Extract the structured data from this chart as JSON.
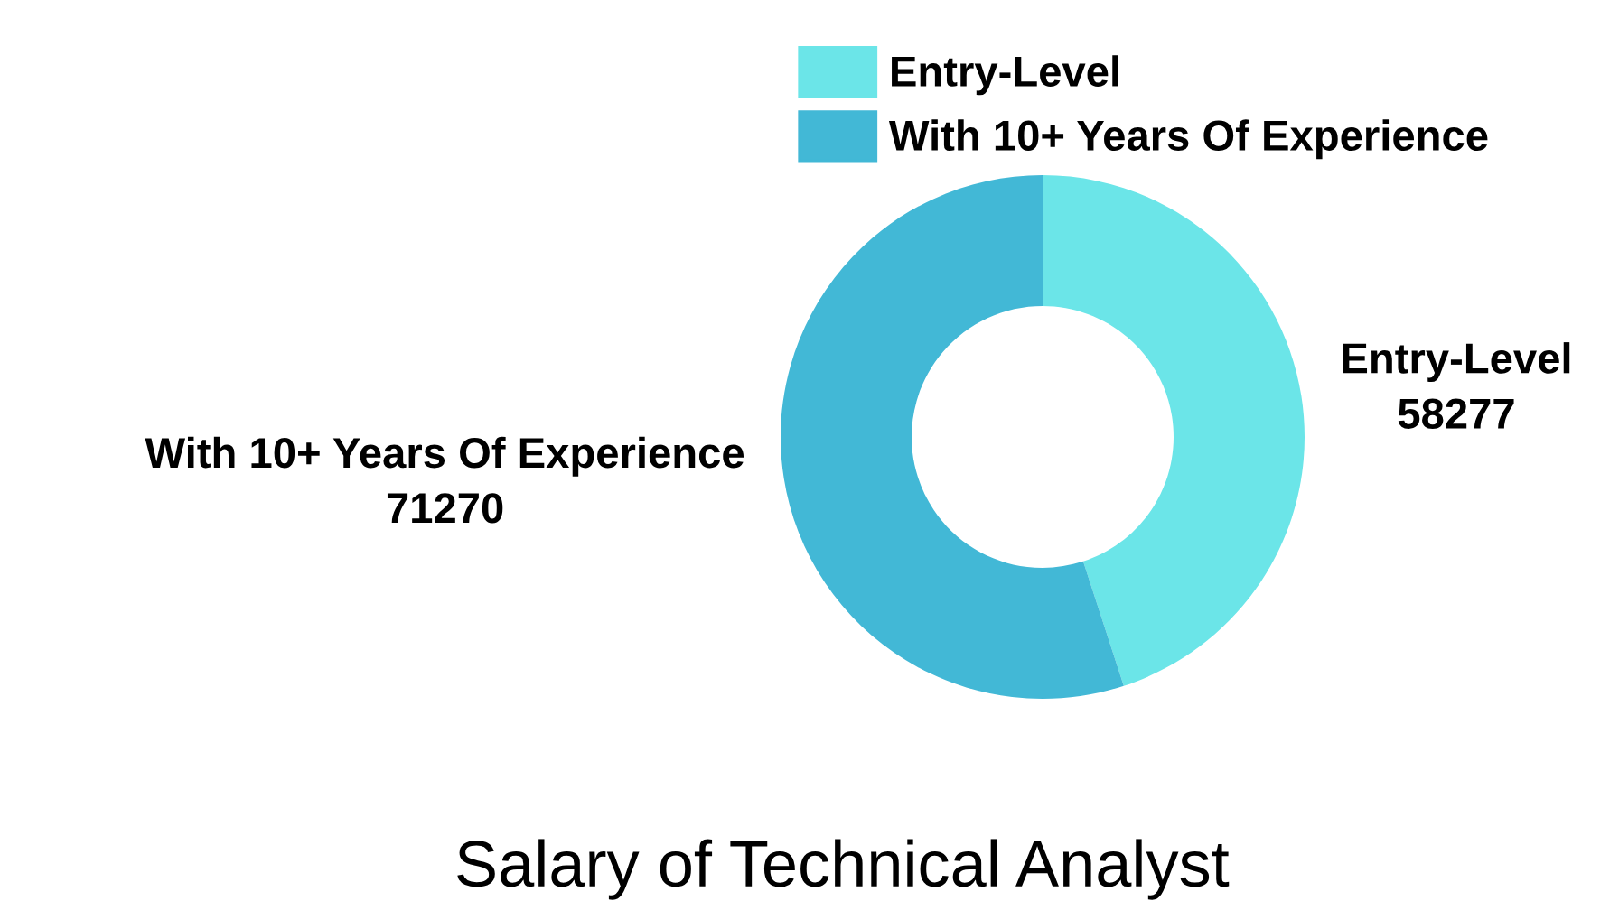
{
  "chart_data": {
    "type": "donut",
    "title": "Salary of Technical Analyst",
    "categories": [
      "Entry-Level",
      "With 10+ Years Of Experience"
    ],
    "values": [
      58277,
      71270
    ],
    "colors": [
      "#6be5e8",
      "#42b8d6"
    ],
    "data_labels": true,
    "legend": "top"
  }
}
